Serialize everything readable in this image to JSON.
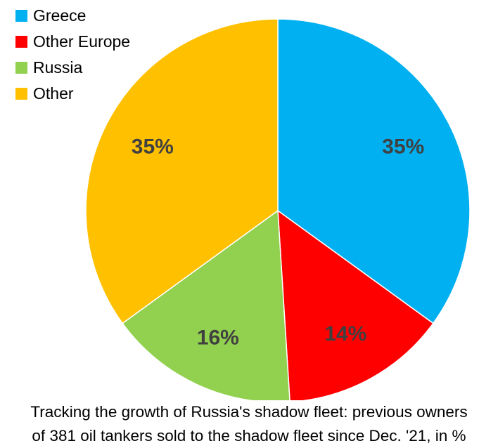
{
  "chart_data": {
    "type": "pie",
    "categories": [
      "Greece",
      "Other Europe",
      "Russia",
      "Other"
    ],
    "values": [
      35,
      14,
      16,
      35
    ],
    "labels": [
      "35%",
      "14%",
      "16%",
      "35%"
    ],
    "colors": [
      "#00B0F0",
      "#FF0000",
      "#92D050",
      "#FFC000"
    ],
    "legend_position": "top-left",
    "start_angle": "12 o'clock, clockwise"
  },
  "caption": {
    "line1": "Tracking the growth of Russia's shadow fleet: previous owners",
    "line2": "of 381 oil tankers sold to the shadow fleet since Dec. '21, in %"
  }
}
